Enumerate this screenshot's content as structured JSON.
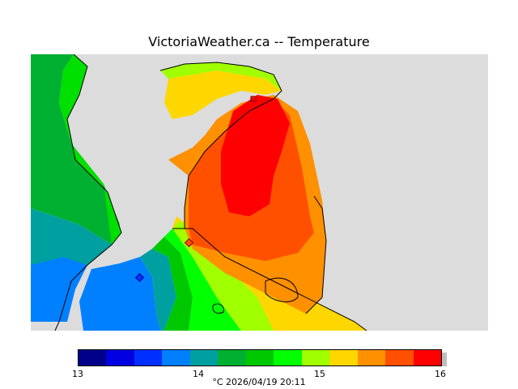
{
  "title": "VictoriaWeather.ca -- Temperature",
  "map": {
    "background_color": "#dcdcdc",
    "coastline_color": "#000000",
    "station_markers": 3
  },
  "legend": {
    "colors": [
      "#00008b",
      "#0000e0",
      "#0030ff",
      "#0080ff",
      "#00a0a0",
      "#00b030",
      "#00c800",
      "#00ff00",
      "#a0ff00",
      "#ffd700",
      "#ff9000",
      "#ff5000",
      "#ff0000"
    ],
    "ticks": [
      "13",
      "14",
      "15",
      "16"
    ],
    "caption": "°C  2026/04/19 20:11"
  }
}
